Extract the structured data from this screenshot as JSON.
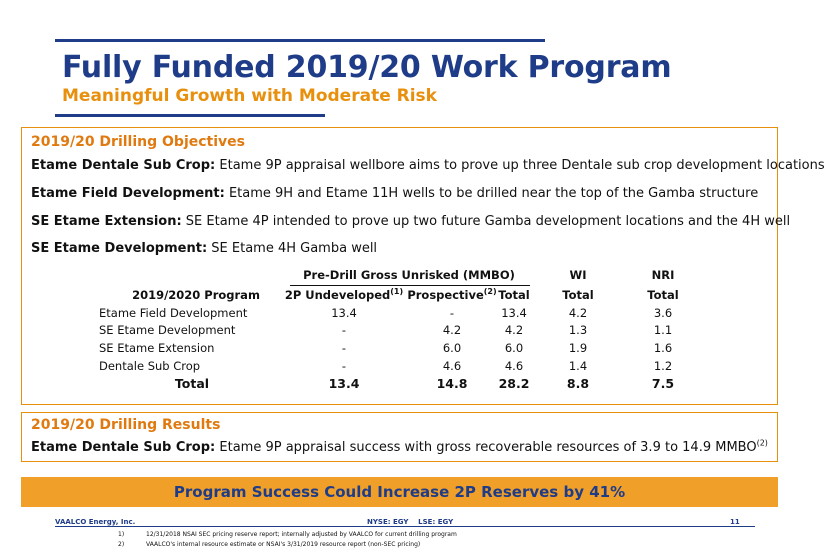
{
  "header": {
    "title": "Fully Funded 2019/20 Work Program",
    "subtitle": "Meaningful Growth with Moderate Risk"
  },
  "objectives": {
    "heading": "2019/20 Drilling Objectives",
    "items": [
      {
        "label": "Etame Dentale Sub Crop:",
        "text": " Etame 9P appraisal wellbore aims to prove up three Dentale sub crop development locations"
      },
      {
        "label": "Etame Field Development:",
        "text": " Etame 9H and Etame 11H wells to be drilled near the top of the Gamba structure"
      },
      {
        "label": "SE Etame Extension:",
        "text": " SE Etame 4P intended to prove up two future Gamba development locations and the 4H well"
      },
      {
        "label": "SE Etame Development:",
        "text": " SE Etame 4H Gamba well"
      }
    ]
  },
  "table": {
    "group_header": "Pre-Drill Gross Unrisked (MMBO)",
    "wi_header": "WI",
    "nri_header": "NRI",
    "col_program": "2019/2020 Program",
    "col_2p": "2P Undeveloped",
    "col_2p_sup": "(1)",
    "col_prospective": "Prospective",
    "col_prospective_sup": "(2)",
    "col_total": "Total",
    "col_wi_total": "Total",
    "col_nri_total": "Total",
    "rows": [
      {
        "program": "Etame Field Development",
        "undeveloped": "13.4",
        "prospective": "-",
        "total": "13.4",
        "wi": "4.2",
        "nri": "3.6"
      },
      {
        "program": "SE Etame Development",
        "undeveloped": "-",
        "prospective": "4.2",
        "total": "4.2",
        "wi": "1.3",
        "nri": "1.1"
      },
      {
        "program": "SE Etame Extension",
        "undeveloped": "-",
        "prospective": "6.0",
        "total": "6.0",
        "wi": "1.9",
        "nri": "1.6"
      },
      {
        "program": "Dentale Sub Crop",
        "undeveloped": "-",
        "prospective": "4.6",
        "total": "4.6",
        "wi": "1.4",
        "nri": "1.2"
      }
    ],
    "totals": {
      "program": "Total",
      "undeveloped": "13.4",
      "prospective": "14.8",
      "total": "28.2",
      "wi": "8.8",
      "nri": "7.5"
    }
  },
  "results": {
    "heading": "2019/20 Drilling Results",
    "label": "Etame Dentale Sub Crop:",
    "text": " Etame 9P appraisal success with gross recoverable resources of 3.9 to 14.9 MMBO",
    "sup": "(2)"
  },
  "banner": "Program Success Could Increase 2P Reserves by 41%",
  "footer": {
    "company": "VAALCO Energy, Inc.",
    "tickers": "NYSE: EGY    LSE: EGY",
    "page": "11",
    "footnotes": [
      {
        "num": "1)",
        "text": "12/31/2018 NSAI SEC pricing reserve report; internally adjusted by VAALCO for current drilling program"
      },
      {
        "num": "2)",
        "text": "VAALCO's internal resource estimate or NSAI's 3/31/2019 resource report (non-SEC pricing)"
      }
    ]
  },
  "colors": {
    "navy": "#1f3c88",
    "orange": "#e8900e",
    "banner": "#f0a028"
  }
}
